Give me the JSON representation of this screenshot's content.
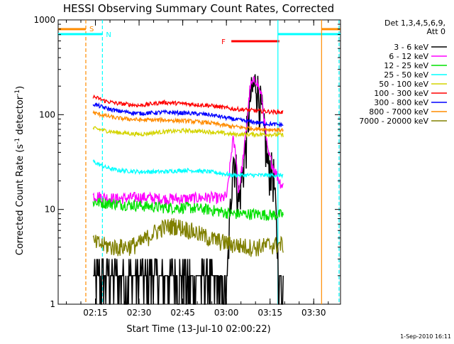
{
  "chart_data": {
    "type": "line",
    "title": "HESSI Observing Summary Count Rates, Corrected",
    "xlabel": "Start Time (13-Jul-10 02:00:22)",
    "ylabel_main": "Corrected Count Rate (s",
    "ylabel_sup1": "-1",
    "ylabel_mid": " detector",
    "ylabel_sup2": "-1",
    "ylabel_end": ")",
    "yscale": "log",
    "ylim": [
      1,
      1000
    ],
    "xlim_minutes": [
      2.0,
      99.0
    ],
    "grid": false,
    "legend_position": "top-right",
    "legend_header": [
      "Det 1,3,4,5,6,9,",
      "Att 0"
    ],
    "footer_date": "1-Sep-2010 16:11",
    "x_ticks": [
      {
        "label": "02:15",
        "minute": 14.8
      },
      {
        "label": "02:30",
        "minute": 29.8
      },
      {
        "label": "02:45",
        "minute": 44.8
      },
      {
        "label": "03:00",
        "minute": 59.8
      },
      {
        "label": "03:15",
        "minute": 74.8
      },
      {
        "label": "03:30",
        "minute": 89.8
      }
    ],
    "y_ticks": [
      {
        "label": "1",
        "value": 1
      },
      {
        "label": "10",
        "value": 10
      },
      {
        "label": "100",
        "value": 100
      },
      {
        "label": "1000",
        "value": 1000
      }
    ],
    "data_end_minute": 79.3,
    "series": [
      {
        "name": "3 - 6 keV",
        "color": "#000000",
        "x": [
          14,
          22,
          30,
          38,
          46,
          54,
          58,
          60,
          62,
          63,
          64,
          66,
          68,
          70,
          72,
          74,
          76,
          78,
          79
        ],
        "y": [
          2.0,
          1.9,
          2.0,
          2.0,
          1.9,
          1.8,
          1.3,
          1.6,
          38,
          30,
          12,
          35,
          150,
          230,
          110,
          30,
          24,
          1.8,
          1.6
        ]
      },
      {
        "name": "6 - 12 keV",
        "color": "#ff00ff",
        "x": [
          14,
          22,
          30,
          38,
          46,
          54,
          58,
          60,
          62,
          63,
          64,
          66,
          68,
          70,
          72,
          74,
          76,
          78,
          79
        ],
        "y": [
          14,
          13,
          13.5,
          13,
          13,
          13.5,
          13,
          14,
          55,
          40,
          15,
          45,
          200,
          240,
          150,
          40,
          28,
          20,
          18
        ]
      },
      {
        "name": "12 - 25 keV",
        "color": "#00e000",
        "x": [
          14,
          22,
          30,
          38,
          46,
          54,
          58,
          62,
          66,
          70,
          74,
          79
        ],
        "y": [
          12,
          11.5,
          11,
          10.5,
          10.5,
          10,
          9.5,
          9.0,
          9.0,
          9.0,
          8.8,
          8.8
        ]
      },
      {
        "name": "25 - 50 keV",
        "color": "#00ffff",
        "x": [
          14,
          18,
          22,
          30,
          38,
          46,
          54,
          58,
          62,
          66,
          70,
          74,
          79
        ],
        "y": [
          32,
          28,
          26,
          25,
          25,
          26,
          25,
          24,
          23,
          23,
          23,
          23,
          23
        ]
      },
      {
        "name": "50 - 100 keV",
        "color": "#d4d400",
        "x": [
          14,
          18,
          22,
          30,
          38,
          46,
          54,
          58,
          62,
          66,
          70,
          74,
          79
        ],
        "y": [
          72,
          68,
          65,
          62,
          66,
          68,
          66,
          64,
          62,
          62,
          62,
          62,
          61
        ]
      },
      {
        "name": "100 - 300 keV",
        "color": "#ff0000",
        "x": [
          14,
          18,
          22,
          30,
          38,
          46,
          54,
          58,
          62,
          66,
          70,
          74,
          79
        ],
        "y": [
          155,
          140,
          132,
          125,
          135,
          130,
          125,
          120,
          115,
          113,
          110,
          108,
          106
        ]
      },
      {
        "name": "300 - 800 keV",
        "color": "#0000ff",
        "x": [
          14,
          18,
          22,
          30,
          38,
          46,
          54,
          58,
          62,
          66,
          70,
          74,
          79
        ],
        "y": [
          130,
          118,
          110,
          103,
          106,
          104,
          100,
          95,
          90,
          86,
          83,
          80,
          78
        ]
      },
      {
        "name": "800 - 7000 keV",
        "color": "#ff8c00",
        "x": [
          14,
          18,
          22,
          30,
          38,
          46,
          54,
          58,
          62,
          66,
          70,
          74,
          79
        ],
        "y": [
          105,
          98,
          92,
          88,
          88,
          86,
          82,
          78,
          75,
          73,
          71,
          70,
          69
        ]
      },
      {
        "name": "7000 - 20000 keV",
        "color": "#808000",
        "x": [
          14,
          18,
          22,
          26,
          30,
          34,
          38,
          42,
          46,
          50,
          54,
          58,
          62,
          66,
          70,
          74,
          79
        ],
        "y": [
          4.5,
          4.2,
          4.0,
          4.1,
          4.4,
          5.5,
          6.5,
          6.8,
          6.3,
          5.6,
          5.0,
          4.6,
          4.3,
          4.1,
          4.0,
          4.2,
          4.3
        ]
      }
    ],
    "annotations": [
      {
        "label": "S",
        "color": "#ff8c00",
        "line_minute": 11.5,
        "bar_range": [
          2.0,
          11.5
        ],
        "style": "dashed"
      },
      {
        "label": "N",
        "color": "#00ffff",
        "line_minute": 17.2,
        "bar_range": [
          2.0,
          17.2
        ],
        "style": "dashed"
      },
      {
        "label": "F",
        "color": "#ff0000",
        "line_minute": null,
        "bar_range": [
          61.5,
          78.0
        ],
        "style": "bar"
      },
      {
        "label": "",
        "color": "#00ffff",
        "line_minute": 77.5,
        "bar_range": [
          77.5,
          99.0
        ],
        "style": "solid"
      },
      {
        "label": "",
        "color": "#ff8c00",
        "line_minute": 92.5,
        "bar_range": [
          92.5,
          99.0
        ],
        "style": "solid"
      },
      {
        "label": "",
        "color": "#00ffff",
        "line_minute": 98.5,
        "bar_range": null,
        "style": "dashed"
      }
    ]
  }
}
